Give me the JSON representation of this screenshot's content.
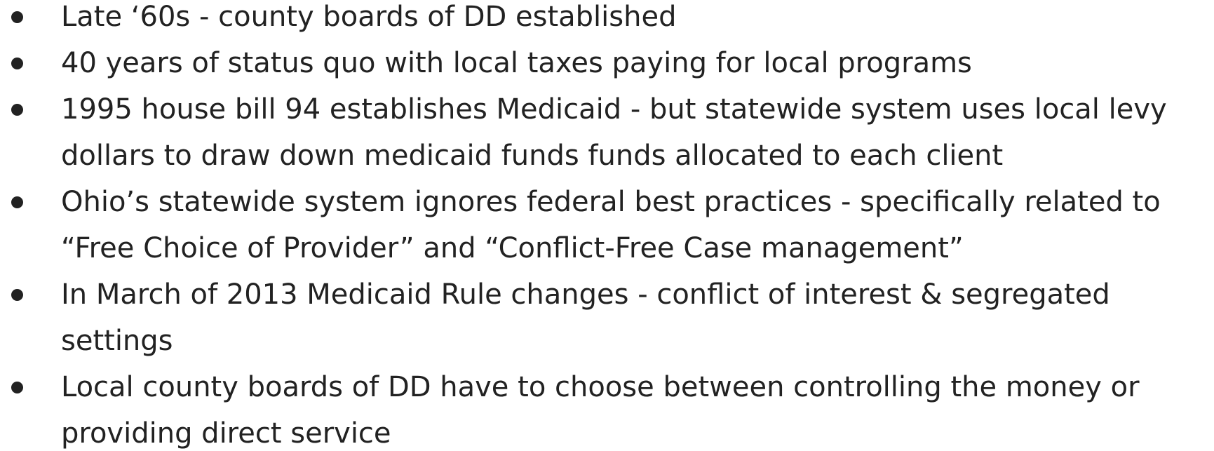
{
  "bullets": [
    "Late ‘60s - county boards of DD established",
    "40 years of status quo with local taxes paying for local programs",
    "1995 house bill 94 establishes Medicaid - but statewide system uses local levy dollars to draw down medicaid funds funds allocated to each client",
    "Ohio’s statewide system ignores federal best practices - specifically related to “Free Choice of Provider” and “Conflict-Free Case management”",
    "In March of 2013 Medicaid Rule changes - conflict of interest & segregated settings",
    "Local county boards of DD have to choose between controlling the money or providing direct service"
  ]
}
